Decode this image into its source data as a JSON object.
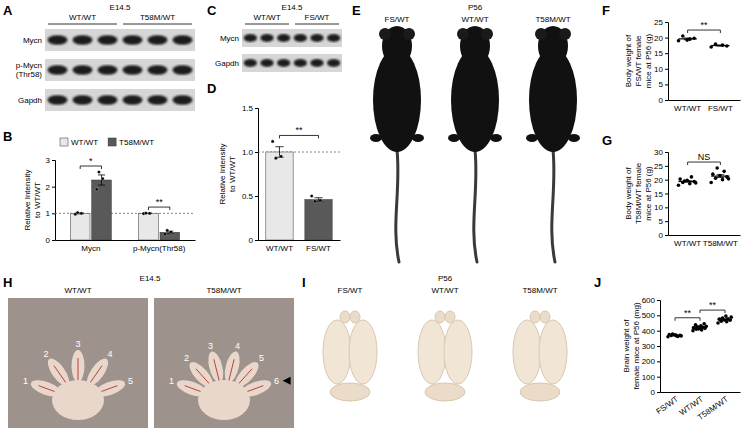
{
  "chart_data": [
    {
      "panel": "B",
      "type": "bar",
      "y_label": [
        "Relative Intensity",
        "to WT/WT"
      ],
      "categories": [
        "Mycn",
        "p-Mycn(Thr58)"
      ],
      "series": [
        {
          "name": "WT/WT",
          "color": "#e8e8e8",
          "values": [
            1,
            1
          ],
          "errors": [
            0.02,
            0.01
          ],
          "points": [
            [
              0.97,
              1,
              1.03
            ],
            [
              0.99,
              1,
              1.01
            ]
          ]
        },
        {
          "name": "T58M/WT",
          "color": "#595959",
          "values": [
            2.25,
            0.29
          ],
          "errors": [
            0.19,
            0.04
          ],
          "points": [
            [
              1.9,
              2.3,
              2.55
            ],
            [
              0.22,
              0.3,
              0.36
            ]
          ]
        }
      ],
      "ylim": [
        0,
        3
      ],
      "yticks": [
        0,
        1,
        2,
        3
      ],
      "reference_line": 1,
      "significance": [
        "*",
        "**"
      ],
      "legend": "top"
    },
    {
      "panel": "D",
      "type": "bar",
      "y_label": [
        "Relative Intensity",
        "to WT/WT"
      ],
      "categories": [
        "WT/WT",
        "FS/WT"
      ],
      "values": [
        1,
        0.46
      ],
      "errors": [
        0.06,
        0.02
      ],
      "points": [
        [
          1.12,
          0.95,
          0.93
        ],
        [
          0.5,
          0.45,
          0.44
        ]
      ],
      "colors": [
        "#e8e8e8",
        "#595959"
      ],
      "ylim": [
        0,
        1.5
      ],
      "yticks": [
        0,
        0.5,
        {
          "value": 1,
          "label": "1.0"
        },
        1.5
      ],
      "reference_line": 1,
      "significance": [
        {
          "text": "**",
          "pair": [
            "WT/WT",
            "FS/WT"
          ]
        }
      ]
    },
    {
      "panel": "F",
      "type": "dot",
      "y_label": [
        "Body weight of",
        "FS/WT female",
        "mice at P56 (g)"
      ],
      "categories": [
        "WT/WT",
        "FS/WT"
      ],
      "values": [
        19.6,
        17.45
      ],
      "errors": [
        0.27,
        0.2
      ],
      "points": [
        [
          19.0,
          19.5,
          20.5,
          19.8,
          19.2
        ],
        [
          17.0,
          17.6,
          17.9,
          17.3
        ]
      ],
      "color": "#000000",
      "ylim": [
        0,
        25
      ],
      "yticks": [
        0,
        5,
        10,
        15,
        20,
        25
      ],
      "significance": [
        {
          "text": "**",
          "pair": [
            "WT/WT",
            "FS/WT"
          ]
        }
      ]
    },
    {
      "panel": "G",
      "type": "dot",
      "y_label": [
        "Body weight of",
        "T58M/WT female",
        "mice at P56 (g)"
      ],
      "categories": [
        "WT/WT",
        "T58M/WT"
      ],
      "values": [
        19.35,
        21.28
      ],
      "errors": [
        0.3,
        0.5
      ],
      "points": [
        [
          18.0,
          18.5,
          19.0,
          19.3,
          19.8,
          20.2,
          21.0,
          19.5,
          18.8
        ],
        [
          19.0,
          20.0,
          20.5,
          21.0,
          21.5,
          22.0,
          23.0,
          24.2,
          20.3
        ]
      ],
      "color": "#000000",
      "ylim": [
        0,
        30
      ],
      "yticks": [
        0,
        5,
        10,
        15,
        20,
        25,
        30
      ],
      "significance": [
        {
          "text": "NS",
          "pair": [
            "WT/WT",
            "T58M/WT"
          ]
        }
      ]
    },
    {
      "panel": "J",
      "type": "dot",
      "y_label": [
        "Brain weight of",
        "female mice at P56 (mg)"
      ],
      "categories": [
        "FS/WT",
        "WT/WT",
        "T58M/WT"
      ],
      "values": [
        369,
        420.6,
        472.5
      ],
      "errors": [
        2,
        3,
        4
      ],
      "points": [
        [
          360,
          365,
          368,
          370,
          372,
          375,
          362,
          378,
          366,
          371
        ],
        [
          400,
          405,
          410,
          415,
          418,
          420,
          422,
          425,
          428,
          432,
          438,
          445,
          412,
          419
        ],
        [
          450,
          458,
          462,
          468,
          470,
          475,
          478,
          482,
          488,
          495,
          472
        ]
      ],
      "color": "#000000",
      "ylim": [
        0,
        600
      ],
      "yticks": [
        0,
        100,
        200,
        300,
        400,
        500,
        600
      ],
      "significance": [
        {
          "text": "**",
          "pair": [
            "FS/WT",
            "WT/WT"
          ]
        },
        {
          "text": "**",
          "pair": [
            "WT/WT",
            "T58M/WT"
          ]
        }
      ]
    }
  ],
  "blots": [
    {
      "panel": "A",
      "stage": "E14.5",
      "groups": [
        "WT/WT",
        "T58M/WT"
      ],
      "rows": [
        [
          "Mycn"
        ],
        [
          "p-Mycn",
          "(Thr58)"
        ],
        [
          "Gapdh"
        ]
      ]
    },
    {
      "panel": "C",
      "stage": "E14.5",
      "groups": [
        "WT/WT",
        "FS/WT"
      ],
      "rows": [
        [
          "Mycn"
        ],
        [
          "Gapdh"
        ]
      ]
    }
  ],
  "photos": [
    {
      "panel": "E",
      "stage": "P56",
      "labels": [
        "FS/WT",
        "WT/WT",
        "T58M/WT"
      ]
    },
    {
      "panel": "H",
      "stage": "E14.5",
      "labels": [
        "WT/WT",
        "T58M/WT"
      ],
      "digits": [
        [
          1,
          2,
          3,
          4,
          5
        ],
        [
          1,
          2,
          3,
          4,
          5,
          6
        ]
      ]
    },
    {
      "panel": "I",
      "stage": "P56",
      "labels": [
        "FS/WT",
        "WT/WT",
        "T58M/WT"
      ]
    }
  ]
}
